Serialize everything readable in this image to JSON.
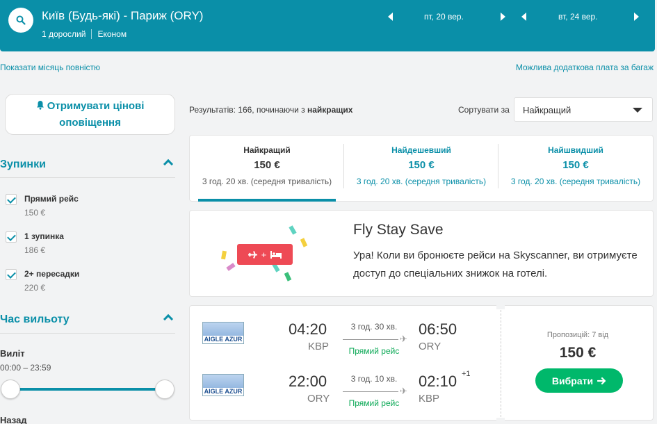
{
  "header": {
    "route": "Київ (Будь-які) - Париж (ORY)",
    "passengers": "1 дорослий",
    "cabin": "Економ",
    "depart_date": "пт, 20 вер.",
    "return_date": "вт, 24 вер."
  },
  "links": {
    "show_month": "Показати місяць повністю",
    "baggage": "Можлива додаткова плата за багаж"
  },
  "alert": {
    "label": "Отримувати цінові оповіщення"
  },
  "stops": {
    "title": "Зупинки",
    "items": [
      {
        "label": "Прямий рейс",
        "price": "150 €",
        "checked": true
      },
      {
        "label": "1 зупинка",
        "price": "186 €",
        "checked": true
      },
      {
        "label": "2+ пересадки",
        "price": "220 €",
        "checked": true
      }
    ]
  },
  "departure_time": {
    "title": "Час вильоту",
    "outbound_label": "Виліт",
    "outbound_range": "00:00 – 23:59",
    "return_label": "Назад"
  },
  "results": {
    "prefix": "Результатів: 166, починаючи з ",
    "bold": "найкращих"
  },
  "sort": {
    "label": "Сортувати за",
    "selected": "Найкращий"
  },
  "tabs": [
    {
      "title": "Найкращий",
      "price": "150 €",
      "duration": "3 год. 20 хв. (середня тривалість)",
      "active": true
    },
    {
      "title": "Найдешевший",
      "price": "150 €",
      "duration": "3 год. 20 хв. (середня тривалість)",
      "active": false
    },
    {
      "title": "Найшвидший",
      "price": "150 €",
      "duration": "3 год. 20 хв. (середня тривалість)",
      "active": false
    }
  ],
  "promo": {
    "title": "Fly Stay Save",
    "text": "Ура! Коли ви бронюєте рейси на Skyscanner, ви отримуєте доступ до спеціальних знижок на готелі.",
    "badge_plus": "+"
  },
  "flight": {
    "airline": "AIGLE AZUR",
    "legs": [
      {
        "dep_time": "04:20",
        "dep_airport": "KBP",
        "duration": "3 год. 30 хв.",
        "stops": "Прямий рейс",
        "arr_time": "06:50",
        "arr_airport": "ORY",
        "day_offset": ""
      },
      {
        "dep_time": "22:00",
        "dep_airport": "ORY",
        "duration": "3 год. 10 хв.",
        "stops": "Прямий рейс",
        "arr_time": "02:10",
        "arr_airport": "KBP",
        "day_offset": "+1"
      }
    ],
    "offers": "Пропозицій: 7 від",
    "price": "150 €",
    "select_label": "Вибрати"
  },
  "colors": {
    "primary": "#0a8fa8",
    "accent_green": "#00b86b",
    "promo_red": "#ee4a55"
  }
}
